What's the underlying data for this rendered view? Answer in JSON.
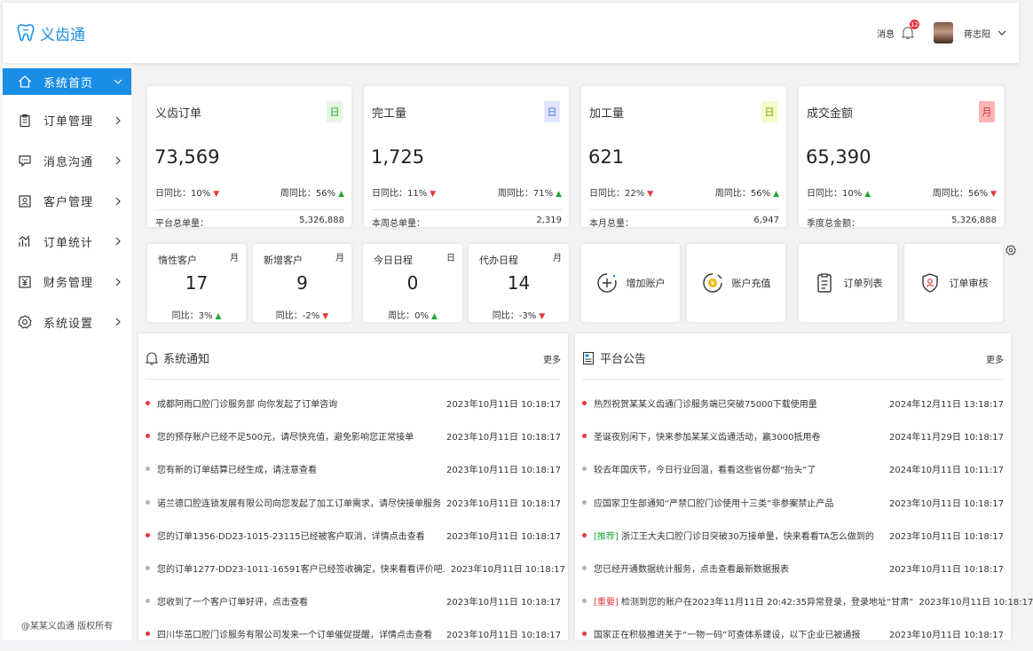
{
  "header": {
    "app_name": "义齿通",
    "messages_label": "消息",
    "message_count": "12",
    "user_name": "蒋志阳"
  },
  "sidebar": {
    "items": [
      {
        "label": "系统首页",
        "icon": "home-icon"
      },
      {
        "label": "订单管理",
        "icon": "clipboard-icon"
      },
      {
        "label": "消息沟通",
        "icon": "chat-icon"
      },
      {
        "label": "客户管理",
        "icon": "customer-icon"
      },
      {
        "label": "订单统计",
        "icon": "chart-icon"
      },
      {
        "label": "财务管理",
        "icon": "finance-icon"
      },
      {
        "label": "系统设置",
        "icon": "gear-icon"
      }
    ],
    "copyright": "@某某义齿通 版权所有"
  },
  "stats": [
    {
      "title": "义齿订单",
      "tag": "日",
      "tag_color": "#e3f7e1",
      "tag_text_color": "#2aa33a",
      "value": "73,569",
      "left_label": "日同比：10%",
      "left_trend": "down",
      "right_label": "周同比：56%",
      "right_trend": "up",
      "total_label": "平台总单量：",
      "total_value": "5,326,888"
    },
    {
      "title": "完工量",
      "tag": "日",
      "tag_color": "#dfe6fb",
      "tag_text_color": "#4a6fe0",
      "value": "1,725",
      "left_label": "日同比：11%",
      "left_trend": "down",
      "right_label": "周同比：71%",
      "right_trend": "up",
      "total_label": "本周总单量：",
      "total_value": "2,319"
    },
    {
      "title": "加工量",
      "tag": "日",
      "tag_color": "#f5fac8",
      "tag_text_color": "#8a9a10",
      "value": "621",
      "left_label": "日同比：22%",
      "left_trend": "down",
      "right_label": "周同比：56%",
      "right_trend": "up",
      "total_label": "本月总量：",
      "total_value": "6,947"
    },
    {
      "title": "成交金额",
      "tag": "月",
      "tag_color": "#fbb4b4",
      "tag_text_color": "#c53030",
      "value": "65,390",
      "left_label": "日同比：10%",
      "left_trend": "up",
      "right_label": "周同比：56%",
      "right_trend": "down",
      "total_label": "季度总金额：",
      "total_value": "5,326,888"
    }
  ],
  "small_stats": [
    {
      "title": "惰性客户",
      "tag": "月",
      "value": "17",
      "cmp": "同比：3%",
      "trend": "up"
    },
    {
      "title": "新增客户",
      "tag": "月",
      "value": "9",
      "cmp": "同比：-2%",
      "trend": "down"
    },
    {
      "title": "今日日程",
      "tag": "日",
      "value": "0",
      "cmp": "周比：0%",
      "trend": "up"
    },
    {
      "title": "代办日程",
      "tag": "月",
      "value": "14",
      "cmp": "同比：-3%",
      "trend": "down"
    }
  ],
  "quick_actions": [
    {
      "label": "增加账户",
      "icon": "add-account-icon"
    },
    {
      "label": "账户充值",
      "icon": "recharge-icon"
    },
    {
      "label": "订单列表",
      "icon": "order-list-icon"
    },
    {
      "label": "订单审核",
      "icon": "order-review-icon"
    }
  ],
  "notices": {
    "title": "系统通知",
    "more": "更多",
    "items": [
      {
        "text": "成都阿雨口腔门诊服务部 向你发起了订单咨询",
        "date": "2023年10月11日 10:18:17",
        "dot": "red"
      },
      {
        "text": "您的预存账户已经不足500元，请尽快充值，避免影响您正常接单",
        "date": "2023年10月11日 10:18:17",
        "dot": "red"
      },
      {
        "text": "您有新的订单结算已经生成，请注意查看",
        "date": "2023年10月11日 10:18:17",
        "dot": "gray"
      },
      {
        "text": "诺兰德口腔连锁发展有限公司向您发起了加工订单需求，请尽快接单服务",
        "date": "2023年10月11日 10:18:17",
        "dot": "gray"
      },
      {
        "text": "您的订单1356-DD23-1015-23115已经被客户取消，详情点击查看",
        "date": "2023年10月11日 10:18:17",
        "dot": "red"
      },
      {
        "text": "您的订单1277-DD23-1011-16591客户已经签收确定，快来看看评价吧.",
        "date": "2023年10月11日 10:18:17",
        "dot": "gray"
      },
      {
        "text": "您收到了一个客户订单好评，点击查看",
        "date": "2023年10月11日 10:18:17",
        "dot": "gray"
      },
      {
        "text": "四川华茁口腔门诊服务有限公司发来一个订单催促提醒，详情点击查看",
        "date": "2023年10月11日 10:18:17",
        "dot": "red"
      }
    ]
  },
  "announcements": {
    "title": "平台公告",
    "more": "更多",
    "items": [
      {
        "prefix": "",
        "text": "热烈祝贺某某义齿通门诊服务端已突破75000下载使用量",
        "date": "2024年12月11日 13:18:17",
        "dot": "red"
      },
      {
        "prefix": "",
        "text": "圣诞夜别闲下，快来参加某某义齿通活动，赢3000抵用卷",
        "date": "2024年11月29日 10:18:17",
        "dot": "red"
      },
      {
        "prefix": "",
        "text": "较去年国庆节，今日行业回温，看看这些省份都“抬头”了",
        "date": "2024年10月11日 10:11:17",
        "dot": "gray"
      },
      {
        "prefix": "",
        "text": "应国家卫生部通知“严禁口腔门诊使用十三类”非参案禁止产品",
        "date": "2023年10月11日 10:18:17",
        "dot": "gray"
      },
      {
        "prefix": "[推荐]",
        "prefix_type": "rec",
        "text": "浙江王大夫口腔门诊日突破30万接单量，快来看看TA怎么做到的",
        "date": "2023年10月11日 10:18:17",
        "dot": "red"
      },
      {
        "prefix": "",
        "text": "您已经开通数据统计服务，点击查看最新数据报表",
        "date": "2023年10月11日 10:18:17",
        "dot": "gray"
      },
      {
        "prefix": "[重要]",
        "prefix_type": "imp",
        "text": "检测到您的账户在2023年11月11日 20:42:35异常登录，登录地址“甘肃”",
        "date": "2023年10月11日 10:18:17",
        "dot": "gray"
      },
      {
        "prefix": "",
        "text": "国家正在积极推进关于“一物一码”可查体系建设，以下企业已被通报",
        "date": "2023年10月11日 10:18:17",
        "dot": "red"
      }
    ]
  },
  "colors": {
    "accent": "#1a8ee6",
    "up": "#22a63b",
    "down": "#e4393c"
  }
}
